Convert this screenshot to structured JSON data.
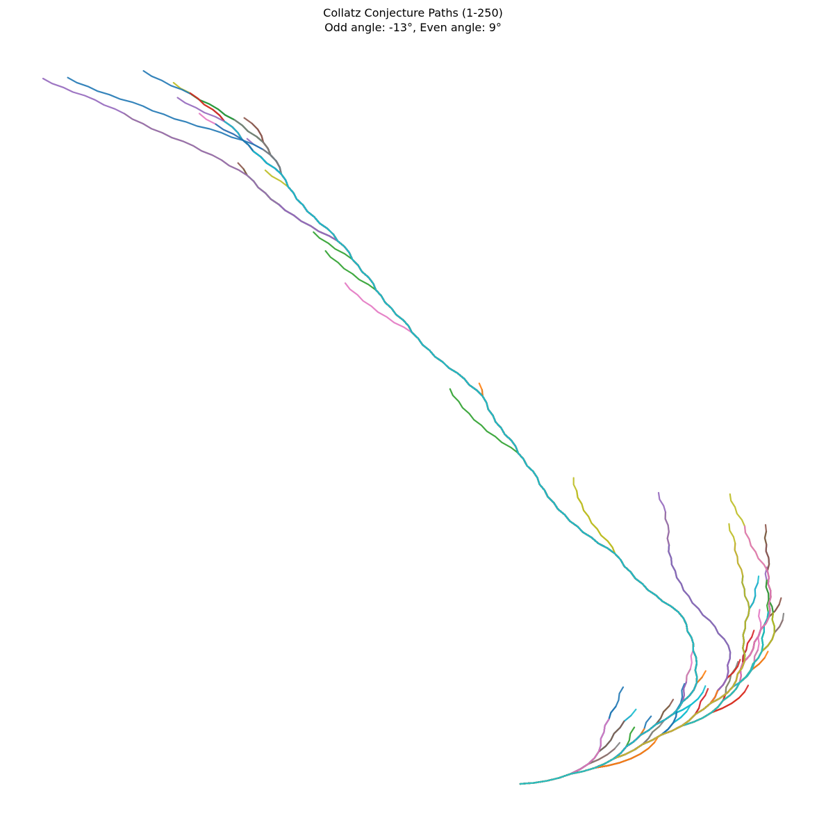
{
  "chart_data": {
    "type": "line",
    "title": "Collatz Conjecture Paths (1-250)",
    "subtitle": "Odd angle: -13°, Even angle: 9°",
    "range_start": 1,
    "range_end": 250,
    "odd_angle_deg": -13,
    "even_angle_deg": 9,
    "axes_visible": false,
    "grid": false,
    "palette": [
      "#1f77b4",
      "#ff7f0e",
      "#2ca02c",
      "#d62728",
      "#9467bd",
      "#8c564b",
      "#e377c2",
      "#7f7f7f",
      "#bcbd22",
      "#17becf"
    ]
  }
}
